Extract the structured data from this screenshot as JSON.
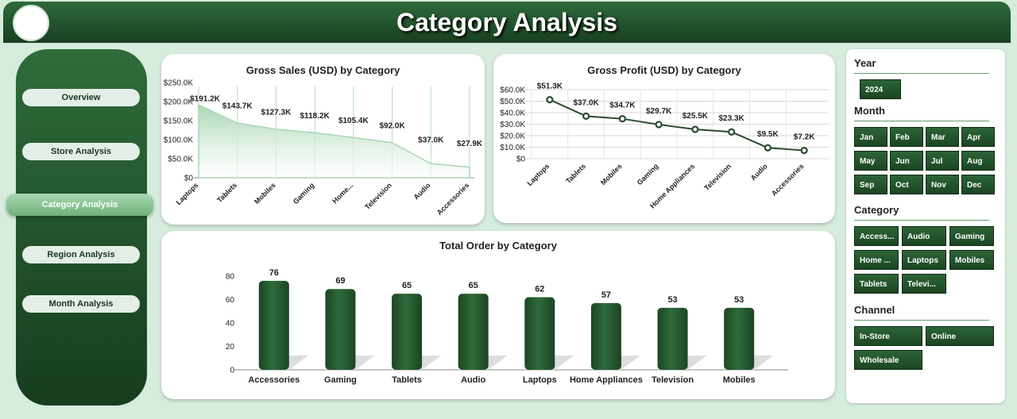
{
  "header": {
    "title": "Category Analysis"
  },
  "nav": [
    "Overview",
    "Store Analysis",
    "Category Analysis",
    "Region Analysis",
    "Month Analysis"
  ],
  "active_nav": 2,
  "slicers": [
    {
      "title": "Year",
      "items": [
        "2024"
      ]
    },
    {
      "title": "Month",
      "items": [
        "Jan",
        "Feb",
        "Mar",
        "Apr",
        "May",
        "Jun",
        "Jul",
        "Aug",
        "Sep",
        "Oct",
        "Nov",
        "Dec"
      ]
    },
    {
      "title": "Category",
      "items": [
        "Access...",
        "Audio",
        "Gaming",
        "Home ...",
        "Laptops",
        "Mobiles",
        "Tablets",
        "Televi..."
      ]
    },
    {
      "title": "Channel",
      "items": [
        "In-Store",
        "Online",
        "Wholesale"
      ]
    }
  ],
  "chart_data": [
    {
      "type": "area",
      "title": "Gross Sales (USD) by Category",
      "categories": [
        "Laptops",
        "Tablets",
        "Mobiles",
        "Gaming",
        "Home...",
        "Television",
        "Audio",
        "Accessories"
      ],
      "values": [
        191200,
        143700,
        127300,
        118200,
        105400,
        92000,
        37000,
        27900
      ],
      "value_labels": [
        "$191.2K",
        "$143.7K",
        "$127.3K",
        "$118.2K",
        "$105.4K",
        "$92.0K",
        "$37.0K",
        "$27.9K"
      ],
      "color": "#a9d6b4",
      "ylim": [
        0,
        250000
      ],
      "yticks": [
        {
          "value": 0,
          "label": "$0"
        },
        {
          "value": 50000,
          "label": "$50.0K"
        },
        {
          "value": 100000,
          "label": "$100.0K"
        },
        {
          "value": 150000,
          "label": "$150.0K"
        },
        {
          "value": 200000,
          "label": "$200.0K"
        },
        {
          "value": 250000,
          "label": "$250.0K"
        }
      ],
      "grid": false
    },
    {
      "type": "line",
      "title": "Gross Profit (USD) by Category",
      "categories": [
        "Laptops",
        "Tablets",
        "Mobiles",
        "Gaming",
        "Home Appliances",
        "Television",
        "Audio",
        "Accessories"
      ],
      "values": [
        51300,
        37000,
        34700,
        29700,
        25500,
        23300,
        9500,
        7200
      ],
      "value_labels": [
        "$51.3K",
        "$37.0K",
        "$34.7K",
        "$29.7K",
        "$25.5K",
        "$23.3K",
        "$9.5K",
        "$7.2K"
      ],
      "color": "#2b4a2f",
      "ylim": [
        0,
        60000
      ],
      "yticks": [
        {
          "value": 0,
          "label": "$0"
        },
        {
          "value": 10000,
          "label": "$10.0K"
        },
        {
          "value": 20000,
          "label": "$20.0K"
        },
        {
          "value": 30000,
          "label": "$30.0K"
        },
        {
          "value": 40000,
          "label": "$40.0K"
        },
        {
          "value": 50000,
          "label": "$50.0K"
        },
        {
          "value": 60000,
          "label": "$60.0K"
        }
      ],
      "grid": true
    },
    {
      "type": "bar",
      "title": "Total Order by Category",
      "categories": [
        "Accessories",
        "Gaming",
        "Tablets",
        "Audio",
        "Laptops",
        "Home Appliances",
        "Television",
        "Mobiles"
      ],
      "values": [
        76,
        69,
        65,
        65,
        62,
        57,
        53,
        53
      ],
      "color": "#2e6b3a",
      "ylim": [
        0,
        80
      ],
      "yticks": [
        0,
        20,
        40,
        60,
        80
      ],
      "grid": false
    }
  ]
}
